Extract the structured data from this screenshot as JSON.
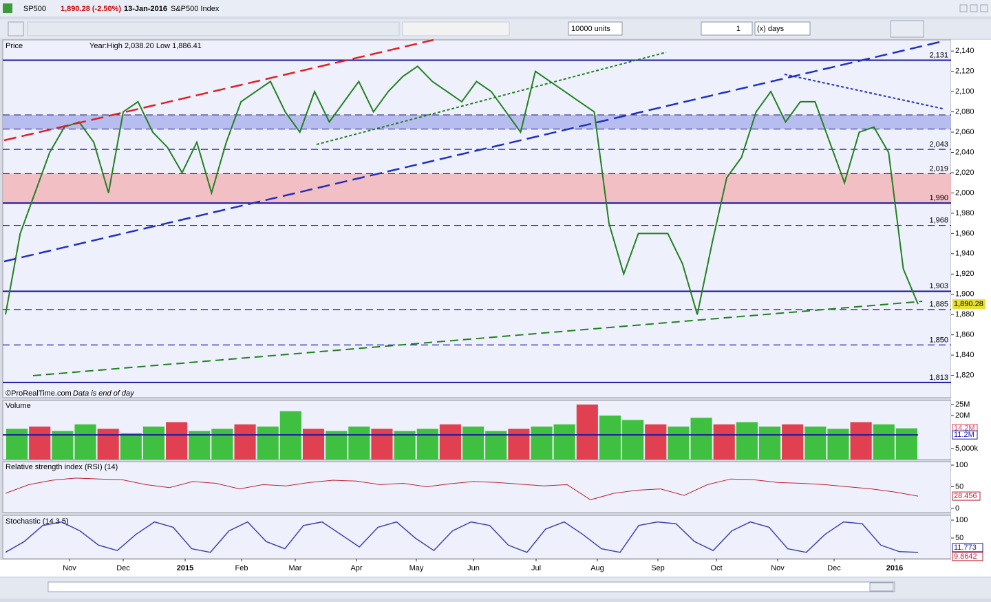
{
  "window": {
    "symbol": "SP500",
    "change": "1,890.28 (-2.50%)",
    "date": "13-Jan-2016",
    "name": "S&P500 Index"
  },
  "toolbar": {
    "units": "10000 units",
    "count": "1",
    "period": "(x) days"
  },
  "price_panel": {
    "label": "Price",
    "info": "Year:High 2,038.20 Low 1,886.41",
    "credit": "©ProRealTime.com",
    "note": "Data is end of day",
    "ylim": [
      1798,
      2151
    ],
    "yticks": [
      {
        "value": 2140,
        "label": "2,140"
      },
      {
        "value": 2120,
        "label": "2,120"
      },
      {
        "value": 2100,
        "label": "2,100"
      },
      {
        "value": 2080,
        "label": "2,080"
      },
      {
        "value": 2060,
        "label": "2,060"
      },
      {
        "value": 2040,
        "label": "2,040"
      },
      {
        "value": 2020,
        "label": "2,020"
      },
      {
        "value": 2000,
        "label": "2,000"
      },
      {
        "value": 1980,
        "label": "1,980"
      },
      {
        "value": 1960,
        "label": "1,960"
      },
      {
        "value": 1940,
        "label": "1,940"
      },
      {
        "value": 1920,
        "label": "1,920"
      },
      {
        "value": 1900,
        "label": "1,900"
      },
      {
        "value": 1880,
        "label": "1,880"
      },
      {
        "value": 1860,
        "label": "1,860"
      },
      {
        "value": 1840,
        "label": "1,840"
      },
      {
        "value": 1820,
        "label": "1,820"
      }
    ],
    "levels": [
      {
        "value": 2131,
        "label": "2,131",
        "style": "solid"
      },
      {
        "value": 2043,
        "label": "2,043",
        "style": "dashed"
      },
      {
        "value": 2019,
        "label": "2,019",
        "style": "dashed"
      },
      {
        "value": 1990,
        "label": "1,990",
        "style": "solid"
      },
      {
        "value": 1968,
        "label": "1,968",
        "style": "dashed"
      },
      {
        "value": 1903,
        "label": "1,903",
        "style": "solid"
      },
      {
        "value": 1885,
        "label": "1,885",
        "style": "dashed"
      },
      {
        "value": 1850,
        "label": "1,850",
        "style": "dashed"
      },
      {
        "value": 1813,
        "label": "1,813",
        "style": "solid"
      }
    ],
    "zones": [
      {
        "range": [
          2063,
          2077
        ],
        "color": "#aab0ee"
      },
      {
        "range": [
          1990,
          2019
        ],
        "color": "#f3b3b8"
      }
    ],
    "last": {
      "value": 1890.28,
      "label": "1,890.28"
    },
    "closes": [
      1880,
      1960,
      2000,
      2040,
      2065,
      2070,
      2050,
      2000,
      2080,
      2090,
      2060,
      2045,
      2020,
      2050,
      2000,
      2050,
      2090,
      2100,
      2110,
      2080,
      2060,
      2100,
      2070,
      2090,
      2110,
      2080,
      2100,
      2115,
      2125,
      2110,
      2100,
      2090,
      2110,
      2100,
      2080,
      2060,
      2120,
      2110,
      2100,
      2090,
      2080,
      1970,
      1920,
      1960,
      1960,
      1960,
      1930,
      1880,
      1950,
      2015,
      2035,
      2080,
      2100,
      2070,
      2090,
      2090,
      2050,
      2010,
      2060,
      2065,
      2040,
      1925,
      1890.28
    ]
  },
  "volume_panel": {
    "label": "Volume",
    "ylim": [
      0,
      25
    ],
    "yticks": [
      {
        "value": 25,
        "label": "25M"
      },
      {
        "value": 20,
        "label": "20M"
      },
      {
        "value": 5,
        "label": "5,000k"
      }
    ],
    "last": {
      "value": 14.2,
      "label": "14.2M"
    },
    "average": {
      "value": 11.2,
      "label": "11.2M"
    },
    "values": [
      14,
      15,
      13,
      16,
      14,
      12,
      15,
      17,
      13,
      14,
      16,
      15,
      22,
      14,
      13,
      15,
      14,
      13,
      14,
      16,
      15,
      13,
      14,
      15,
      16,
      25,
      20,
      18,
      16,
      15,
      19,
      16,
      17,
      15,
      16,
      15,
      14,
      17,
      16,
      14.2
    ]
  },
  "rsi_panel": {
    "label": "Relative strength index (RSI) (14)",
    "ylim": [
      0,
      100
    ],
    "yticks": [
      100,
      50,
      0
    ],
    "last": {
      "value": 28.456,
      "label": "28.456"
    },
    "values": [
      35,
      55,
      65,
      70,
      68,
      66,
      55,
      48,
      62,
      58,
      45,
      55,
      52,
      60,
      65,
      63,
      55,
      58,
      50,
      57,
      62,
      60,
      56,
      52,
      55,
      20,
      35,
      42,
      45,
      30,
      55,
      68,
      66,
      60,
      58,
      55,
      50,
      45,
      38,
      28.456
    ]
  },
  "stochastic_panel": {
    "label": "Stochastic (14 3 5)",
    "ylim": [
      0,
      100
    ],
    "yticks": [
      100,
      50
    ],
    "k": {
      "value": 11.773,
      "label": "11.773"
    },
    "d": {
      "value": 9.8642,
      "label": "9.8642"
    },
    "values": [
      10,
      40,
      85,
      95,
      70,
      30,
      15,
      60,
      95,
      80,
      20,
      10,
      70,
      95,
      40,
      20,
      85,
      95,
      60,
      25,
      80,
      95,
      50,
      15,
      70,
      95,
      85,
      30,
      10,
      75,
      95,
      60,
      20,
      10,
      85,
      95,
      90,
      40,
      15,
      70,
      95,
      80,
      20,
      10,
      60,
      95,
      90,
      30,
      12,
      9.8642
    ]
  },
  "x_labels": [
    "Nov",
    "Dec",
    "2015",
    "Feb",
    "Mar",
    "Apr",
    "May",
    "Jun",
    "Jul",
    "Aug",
    "Sep",
    "Oct",
    "Nov",
    "Dec",
    "2016"
  ]
}
